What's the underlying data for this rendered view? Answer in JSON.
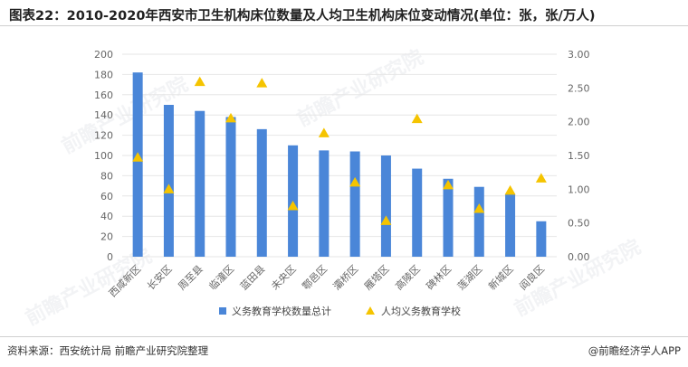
{
  "title": "图表22：2010-2020年西安市卫生机构床位数量及人均卫生机构床位变动情况(单位：张，张/万人)",
  "footer": {
    "source": "资料来源：西安统计局 前瞻产业研究院整理",
    "brand": "@前瞻经济学人APP"
  },
  "watermark": "前瞻产业研究院",
  "colors": {
    "bar": "#4a86d8",
    "marker": "#f5c400",
    "grid": "#e6e6e6",
    "axis_text": "#666666"
  },
  "chart_data": {
    "type": "bar",
    "categories": [
      "西咸新区",
      "长安区",
      "周至县",
      "临潼区",
      "蓝田县",
      "未央区",
      "鄠邑区",
      "灞桥区",
      "雁塔区",
      "高陵区",
      "碑林区",
      "莲湖区",
      "新城区",
      "阎良区"
    ],
    "series": [
      {
        "name": "义务教育学校数量总计",
        "type": "bar",
        "axis": "left",
        "values": [
          182,
          150,
          144,
          138,
          126,
          110,
          105,
          104,
          100,
          87,
          77,
          69,
          62,
          35
        ]
      },
      {
        "name": "人均义务教育学校",
        "type": "scatter",
        "axis": "right",
        "values": [
          1.47,
          1.0,
          2.59,
          2.05,
          2.57,
          0.75,
          1.83,
          1.1,
          0.53,
          2.04,
          1.06,
          0.71,
          0.98,
          1.16
        ]
      }
    ],
    "y_left": {
      "min": 0,
      "max": 200,
      "ticks": [
        0,
        20,
        40,
        60,
        80,
        100,
        120,
        140,
        160,
        180,
        200
      ]
    },
    "y_right": {
      "min": 0,
      "max": 3,
      "ticks": [
        "0.00",
        "0.50",
        "1.00",
        "1.50",
        "2.00",
        "2.50",
        "3.00"
      ]
    },
    "grid": true,
    "legend": "bottom"
  }
}
